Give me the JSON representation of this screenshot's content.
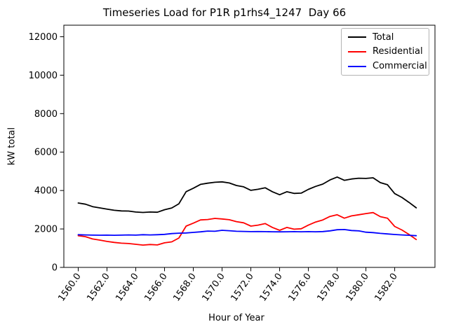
{
  "figure": {
    "title": "Timeseries Load for P1R p1rhs4_1247  Day 66",
    "xlabel": "Hour of Year",
    "ylabel": "kW total",
    "background": "#ffffff"
  },
  "legend": {
    "entries": [
      {
        "label": "Total",
        "color": "#000000"
      },
      {
        "label": "Residential",
        "color": "#ff0000"
      },
      {
        "label": "Commercial",
        "color": "#0000ff"
      }
    ]
  },
  "chart_data": {
    "type": "line",
    "title": "Timeseries Load for P1R p1rhs4_1247  Day 66",
    "xlabel": "Hour of Year",
    "ylabel": "kW total",
    "xlim": [
      1559.0,
      1584.8
    ],
    "ylim": [
      0,
      12600
    ],
    "grid": false,
    "legend_position": "upper right",
    "x_ticks": {
      "values": [
        1560,
        1562,
        1564,
        1566,
        1568,
        1570,
        1572,
        1574,
        1576,
        1578,
        1580,
        1582
      ],
      "labels": [
        "1560.0",
        "1562.0",
        "1564.0",
        "1566.0",
        "1568.0",
        "1570.0",
        "1572.0",
        "1574.0",
        "1576.0",
        "1578.0",
        "1580.0",
        "1582.0"
      ]
    },
    "y_ticks": {
      "values": [
        0,
        2000,
        4000,
        6000,
        8000,
        10000,
        12000
      ],
      "labels": [
        "0",
        "2000",
        "4000",
        "6000",
        "8000",
        "10000",
        "12000"
      ]
    },
    "x": [
      1560.0,
      1560.5,
      1561.0,
      1561.5,
      1562.0,
      1562.5,
      1563.0,
      1563.5,
      1564.0,
      1564.5,
      1565.0,
      1565.5,
      1566.0,
      1566.5,
      1567.0,
      1567.5,
      1568.0,
      1568.5,
      1569.0,
      1569.5,
      1570.0,
      1570.5,
      1571.0,
      1571.5,
      1572.0,
      1572.5,
      1573.0,
      1573.5,
      1574.0,
      1574.5,
      1575.0,
      1575.5,
      1576.0,
      1576.5,
      1577.0,
      1577.5,
      1578.0,
      1578.5,
      1579.0,
      1579.5,
      1580.0,
      1580.5,
      1581.0,
      1581.5,
      1582.0,
      1582.5,
      1583.0,
      1583.5
    ],
    "series": [
      {
        "name": "Total",
        "color": "#000000",
        "values": [
          3350,
          3290,
          3160,
          3095,
          3030,
          2970,
          2940,
          2930,
          2880,
          2860,
          2880,
          2870,
          3000,
          3090,
          3310,
          3940,
          4120,
          4320,
          4380,
          4430,
          4450,
          4390,
          4260,
          4190,
          4010,
          4065,
          4140,
          3935,
          3780,
          3935,
          3850,
          3865,
          4060,
          4215,
          4335,
          4550,
          4700,
          4530,
          4600,
          4640,
          4630,
          4660,
          4410,
          4300,
          3840,
          3640,
          3380,
          3100
        ]
      },
      {
        "name": "Residential",
        "color": "#ff0000",
        "values": [
          1650,
          1600,
          1480,
          1420,
          1350,
          1300,
          1260,
          1240,
          1200,
          1160,
          1190,
          1170,
          1280,
          1330,
          1530,
          2150,
          2300,
          2470,
          2490,
          2550,
          2520,
          2480,
          2380,
          2320,
          2150,
          2200,
          2280,
          2080,
          1930,
          2080,
          1990,
          2010,
          2200,
          2360,
          2470,
          2650,
          2740,
          2560,
          2680,
          2740,
          2800,
          2850,
          2640,
          2560,
          2130,
          1950,
          1710,
          1450
        ]
      },
      {
        "name": "Commercial",
        "color": "#0000ff",
        "values": [
          1700,
          1690,
          1680,
          1675,
          1680,
          1670,
          1680,
          1690,
          1680,
          1700,
          1690,
          1700,
          1720,
          1760,
          1780,
          1790,
          1820,
          1850,
          1890,
          1880,
          1930,
          1910,
          1880,
          1870,
          1860,
          1865,
          1860,
          1855,
          1850,
          1855,
          1860,
          1855,
          1860,
          1855,
          1865,
          1900,
          1960,
          1970,
          1920,
          1900,
          1830,
          1810,
          1770,
          1740,
          1710,
          1690,
          1670,
          1650
        ]
      }
    ]
  }
}
